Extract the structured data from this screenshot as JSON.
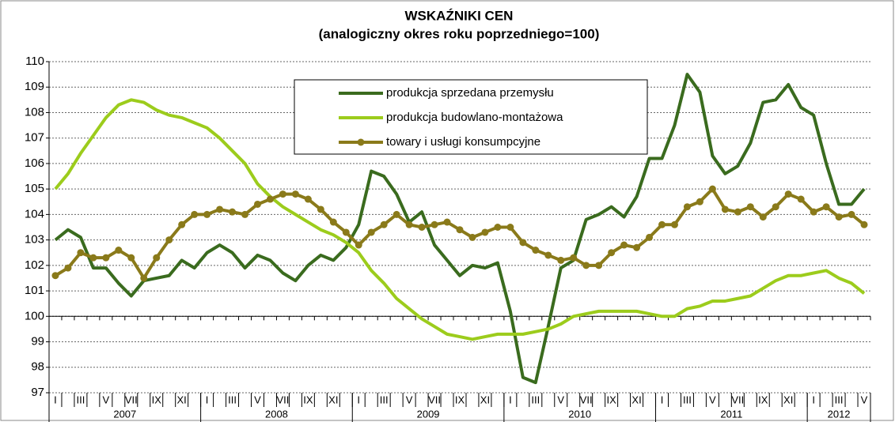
{
  "chart_data": {
    "type": "line",
    "title": "WSKAŹNIKI CEN",
    "subtitle": "(analogiczny okres roku poprzedniego=100)",
    "categories": [
      "I",
      null,
      "III",
      null,
      "V",
      null,
      "VII",
      null,
      "IX",
      null,
      "XI",
      null,
      "I",
      null,
      "III",
      null,
      "V",
      null,
      "VII",
      null,
      "IX",
      null,
      "XI",
      null,
      "I",
      null,
      "III",
      null,
      "V",
      null,
      "VII",
      null,
      "IX",
      null,
      "XI",
      null,
      "I",
      null,
      "III",
      null,
      "V",
      null,
      "VII",
      null,
      "IX",
      null,
      "XI",
      null,
      "I",
      null,
      "III",
      null,
      "V",
      null,
      "VII",
      null,
      "IX",
      null,
      "XI",
      null,
      "I",
      null,
      "III",
      null,
      "V"
    ],
    "year_groups": [
      "2007",
      "2008",
      "2009",
      "2010",
      "2011",
      "2012"
    ],
    "series": [
      {
        "name": "produkcja sprzedana przemysłu",
        "color": "#3a6b1e",
        "marker": false,
        "values": [
          103.0,
          103.4,
          103.1,
          101.9,
          101.9,
          101.3,
          100.8,
          101.4,
          101.5,
          101.6,
          102.2,
          101.9,
          102.5,
          102.8,
          102.5,
          101.9,
          102.4,
          102.2,
          101.7,
          101.4,
          102.0,
          102.4,
          102.2,
          102.7,
          103.6,
          105.7,
          105.5,
          104.8,
          103.7,
          104.1,
          102.8,
          102.2,
          101.6,
          102.0,
          101.9,
          102.1,
          100.2,
          97.6,
          97.4,
          99.6,
          101.9,
          102.2,
          103.8,
          104.0,
          104.3,
          103.9,
          104.7,
          106.2,
          106.2,
          107.5,
          109.5,
          108.8,
          106.3,
          105.6,
          105.9,
          106.8,
          108.4,
          108.5,
          109.1,
          108.2,
          107.9,
          106.0,
          104.4,
          104.4,
          105.0
        ]
      },
      {
        "name": "produkcja budowlano-montażowa",
        "color": "#9ccc1c",
        "marker": false,
        "values": [
          105.0,
          105.6,
          106.4,
          107.1,
          107.8,
          108.3,
          108.5,
          108.4,
          108.1,
          107.9,
          107.8,
          107.6,
          107.4,
          107.0,
          106.5,
          106.0,
          105.2,
          104.7,
          104.3,
          104.0,
          103.7,
          103.4,
          103.2,
          102.9,
          102.5,
          101.8,
          101.3,
          100.7,
          100.3,
          99.9,
          99.6,
          99.3,
          99.2,
          99.1,
          99.2,
          99.3,
          99.3,
          99.3,
          99.4,
          99.5,
          99.7,
          100.0,
          100.1,
          100.2,
          100.2,
          100.2,
          100.2,
          100.1,
          100.0,
          100.0,
          100.3,
          100.4,
          100.6,
          100.6,
          100.7,
          100.8,
          101.1,
          101.4,
          101.6,
          101.6,
          101.7,
          101.8,
          101.5,
          101.3,
          100.9
        ]
      },
      {
        "name": "towary i usługi konsumpcyjne",
        "color": "#8a7a1a",
        "marker": true,
        "values": [
          101.6,
          101.9,
          102.5,
          102.3,
          102.3,
          102.6,
          102.3,
          101.5,
          102.3,
          103.0,
          103.6,
          104.0,
          104.0,
          104.2,
          104.1,
          104.0,
          104.4,
          104.6,
          104.8,
          104.8,
          104.6,
          104.2,
          103.7,
          103.3,
          102.8,
          103.3,
          103.6,
          104.0,
          103.6,
          103.5,
          103.6,
          103.7,
          103.4,
          103.1,
          103.3,
          103.5,
          103.5,
          102.9,
          102.6,
          102.4,
          102.2,
          102.3,
          102.0,
          102.0,
          102.5,
          102.8,
          102.7,
          103.1,
          103.6,
          103.6,
          104.3,
          104.5,
          105.0,
          104.2,
          104.1,
          104.3,
          103.9,
          104.3,
          104.8,
          104.6,
          104.1,
          104.3,
          103.9,
          104.0,
          103.6
        ]
      }
    ],
    "ylim": [
      97,
      110
    ],
    "yticks": [
      97,
      98,
      99,
      100,
      101,
      102,
      103,
      104,
      105,
      106,
      107,
      108,
      109,
      110
    ],
    "x_axis_at": 100,
    "grid": true,
    "legend": "top"
  }
}
